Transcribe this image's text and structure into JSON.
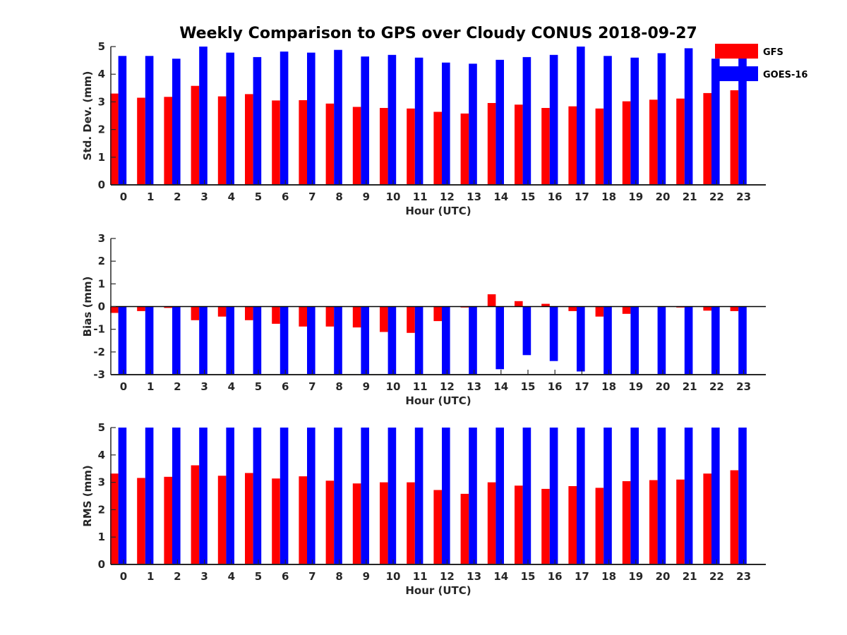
{
  "chart_data": [
    {
      "type": "bar",
      "title": "Weekly Comparison to GPS over Cloudy CONUS 2018-09-27",
      "xlabel": "Hour (UTC)",
      "ylabel": "Std. Dev. (mm)",
      "ylim": [
        0,
        5
      ],
      "yticks": [
        0,
        1,
        2,
        3,
        4,
        5
      ],
      "categories": [
        "0",
        "1",
        "2",
        "3",
        "4",
        "5",
        "6",
        "7",
        "8",
        "9",
        "10",
        "11",
        "12",
        "13",
        "14",
        "15",
        "16",
        "17",
        "18",
        "19",
        "20",
        "21",
        "22",
        "23"
      ],
      "series": [
        {
          "name": "GFS",
          "color": "#ff0000",
          "values": [
            3.3,
            3.15,
            3.18,
            3.58,
            3.2,
            3.28,
            3.05,
            3.06,
            2.94,
            2.82,
            2.78,
            2.76,
            2.64,
            2.58,
            2.96,
            2.9,
            2.78,
            2.84,
            2.76,
            3.02,
            3.08,
            3.12,
            3.32,
            3.42
          ]
        },
        {
          "name": "GOES-16",
          "color": "#0000ff",
          "values": [
            4.66,
            4.66,
            4.56,
            5.0,
            4.78,
            4.62,
            4.82,
            4.78,
            4.88,
            4.64,
            4.7,
            4.6,
            4.42,
            4.38,
            4.52,
            4.62,
            4.7,
            5.0,
            4.66,
            4.6,
            4.76,
            4.94,
            4.56,
            4.62
          ]
        }
      ],
      "legend": "top-right"
    },
    {
      "type": "bar",
      "xlabel": "Hour (UTC)",
      "ylabel": "Bias (mm)",
      "ylim": [
        -3,
        3
      ],
      "yticks": [
        -3,
        -2,
        -1,
        0,
        1,
        2,
        3
      ],
      "zero_line": true,
      "categories": [
        "0",
        "1",
        "2",
        "3",
        "4",
        "5",
        "6",
        "7",
        "8",
        "9",
        "10",
        "11",
        "12",
        "13",
        "14",
        "15",
        "16",
        "17",
        "18",
        "19",
        "20",
        "21",
        "22",
        "23"
      ],
      "series": [
        {
          "name": "GFS",
          "color": "#ff0000",
          "values": [
            -0.28,
            -0.2,
            -0.06,
            -0.6,
            -0.44,
            -0.6,
            -0.76,
            -0.88,
            -0.88,
            -0.92,
            -1.12,
            -1.16,
            -0.64,
            -0.04,
            0.54,
            0.24,
            0.12,
            -0.2,
            -0.44,
            -0.32,
            0.0,
            -0.04,
            -0.18,
            -0.2
          ]
        },
        {
          "name": "GOES-16",
          "color": "#0000ff",
          "values": [
            -3.0,
            -3.0,
            -3.0,
            -3.0,
            -3.0,
            -3.0,
            -3.0,
            -3.0,
            -3.0,
            -3.0,
            -3.0,
            -3.0,
            -3.0,
            -3.0,
            -2.76,
            -2.14,
            -2.4,
            -2.86,
            -3.0,
            -3.0,
            -3.0,
            -3.0,
            -3.0,
            -3.0
          ]
        }
      ]
    },
    {
      "type": "bar",
      "xlabel": "Hour (UTC)",
      "ylabel": "RMS (mm)",
      "ylim": [
        0,
        5
      ],
      "yticks": [
        0,
        1,
        2,
        3,
        4,
        5
      ],
      "categories": [
        "0",
        "1",
        "2",
        "3",
        "4",
        "5",
        "6",
        "7",
        "8",
        "9",
        "10",
        "11",
        "12",
        "13",
        "14",
        "15",
        "16",
        "17",
        "18",
        "19",
        "20",
        "21",
        "22",
        "23"
      ],
      "series": [
        {
          "name": "GFS",
          "color": "#ff0000",
          "values": [
            3.32,
            3.16,
            3.2,
            3.62,
            3.24,
            3.34,
            3.14,
            3.22,
            3.06,
            2.96,
            3.0,
            3.0,
            2.72,
            2.58,
            3.0,
            2.88,
            2.76,
            2.86,
            2.8,
            3.04,
            3.08,
            3.1,
            3.32,
            3.44
          ]
        },
        {
          "name": "GOES-16",
          "color": "#0000ff",
          "values": [
            5.0,
            5.0,
            5.0,
            5.0,
            5.0,
            5.0,
            5.0,
            5.0,
            5.0,
            5.0,
            5.0,
            5.0,
            5.0,
            5.0,
            5.0,
            5.0,
            5.0,
            5.0,
            5.0,
            5.0,
            5.0,
            5.0,
            5.0,
            5.0
          ]
        }
      ]
    }
  ]
}
